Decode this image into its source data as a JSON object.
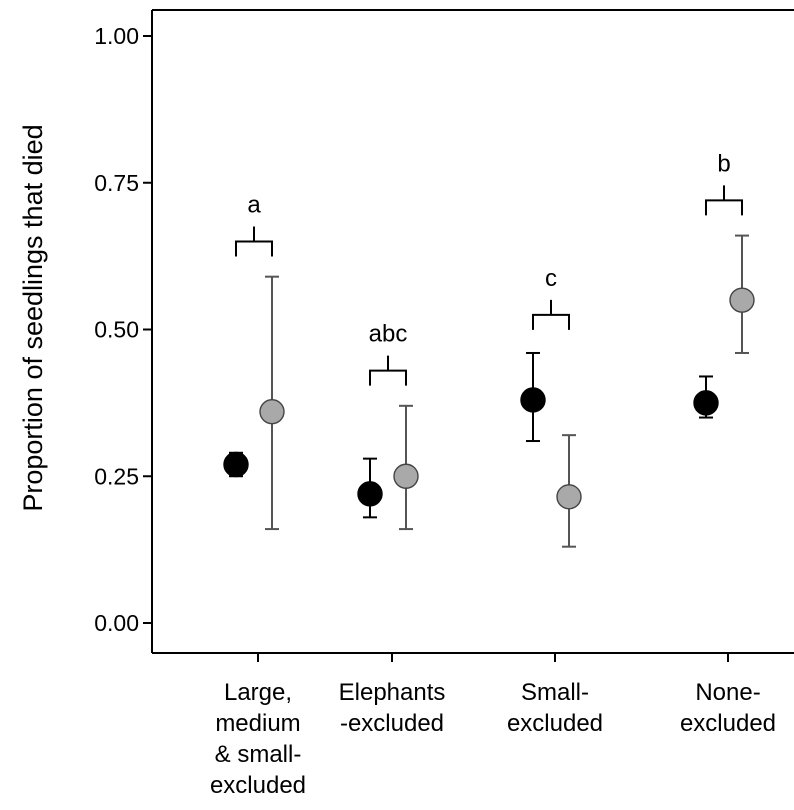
{
  "chart_data": {
    "type": "scatter",
    "title": "",
    "xlabel": "",
    "ylabel": "Proportion of seedlings that died",
    "ylim": [
      -0.05,
      1.05
    ],
    "yticks": [
      {
        "value": 0.0,
        "label": "0.00"
      },
      {
        "value": 0.25,
        "label": "0.25"
      },
      {
        "value": 0.5,
        "label": "0.50"
      },
      {
        "value": 0.75,
        "label": "0.75"
      },
      {
        "value": 1.0,
        "label": "1.00"
      }
    ],
    "categories": [
      {
        "lines": [
          "Large,",
          "medium",
          "& small-",
          "excluded"
        ]
      },
      {
        "lines": [
          "Elephants",
          "-excluded"
        ]
      },
      {
        "lines": [
          "Small-",
          "excluded"
        ]
      },
      {
        "lines": [
          "None-",
          "excluded"
        ]
      }
    ],
    "series": [
      {
        "color": "#000000",
        "points": [
          {
            "category": 0,
            "y": 0.27,
            "lower": 0.25,
            "upper": 0.29
          },
          {
            "category": 1,
            "y": 0.22,
            "lower": 0.18,
            "upper": 0.28
          },
          {
            "category": 2,
            "y": 0.38,
            "lower": 0.31,
            "upper": 0.46
          },
          {
            "category": 3,
            "y": 0.375,
            "lower": 0.35,
            "upper": 0.42
          }
        ]
      },
      {
        "color": "#a9a9a9",
        "points": [
          {
            "category": 0,
            "y": 0.36,
            "lower": 0.16,
            "upper": 0.59
          },
          {
            "category": 1,
            "y": 0.25,
            "lower": 0.16,
            "upper": 0.37
          },
          {
            "category": 2,
            "y": 0.215,
            "lower": 0.13,
            "upper": 0.32
          },
          {
            "category": 3,
            "y": 0.55,
            "lower": 0.46,
            "upper": 0.66
          }
        ]
      }
    ],
    "significance": [
      {
        "category": 0,
        "label": "a",
        "y": 0.65
      },
      {
        "category": 1,
        "label": "abc",
        "y": 0.43
      },
      {
        "category": 2,
        "label": "c",
        "y": 0.525
      },
      {
        "category": 3,
        "label": "b",
        "y": 0.72
      }
    ],
    "grid": false,
    "legend": "none"
  }
}
